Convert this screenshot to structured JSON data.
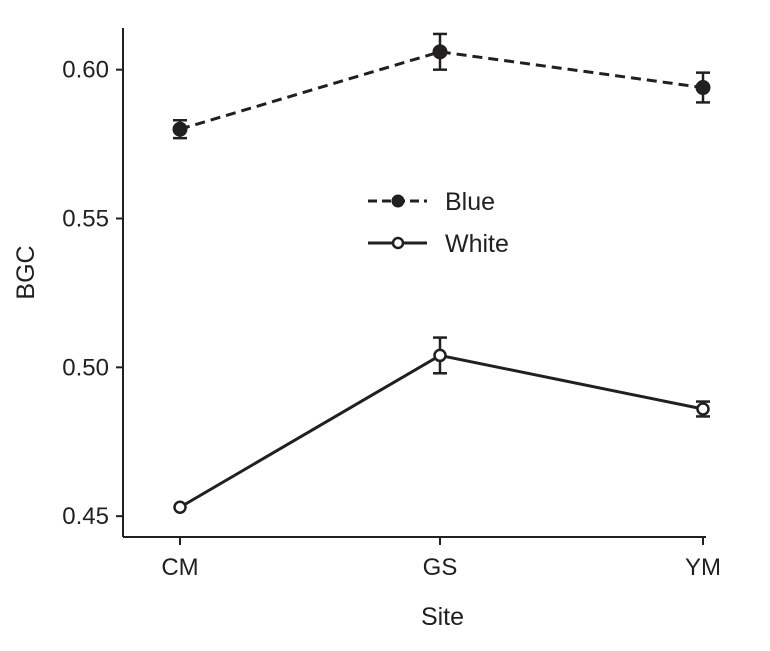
{
  "chart_data": {
    "type": "line",
    "xlabel": "Site",
    "ylabel": "BGC",
    "categories": [
      "CM",
      "GS",
      "YM"
    ],
    "ylim": [
      0.443,
      0.614
    ],
    "yticks": [
      0.45,
      0.5,
      0.55,
      0.6
    ],
    "ytick_labels": [
      "0.45",
      "0.50",
      "0.55",
      "0.60"
    ],
    "grid": false,
    "legend_position": "center",
    "series": [
      {
        "name": "Blue",
        "values": [
          0.58,
          0.606,
          0.594
        ],
        "errors": [
          0.003,
          0.006,
          0.005
        ],
        "line_style": "dashed",
        "marker": "filled-circle",
        "color": "#231f20"
      },
      {
        "name": "White",
        "values": [
          0.453,
          0.504,
          0.486
        ],
        "errors": [
          0.0,
          0.006,
          0.0025
        ],
        "line_style": "solid",
        "marker": "open-circle",
        "color": "#231f20"
      }
    ]
  }
}
